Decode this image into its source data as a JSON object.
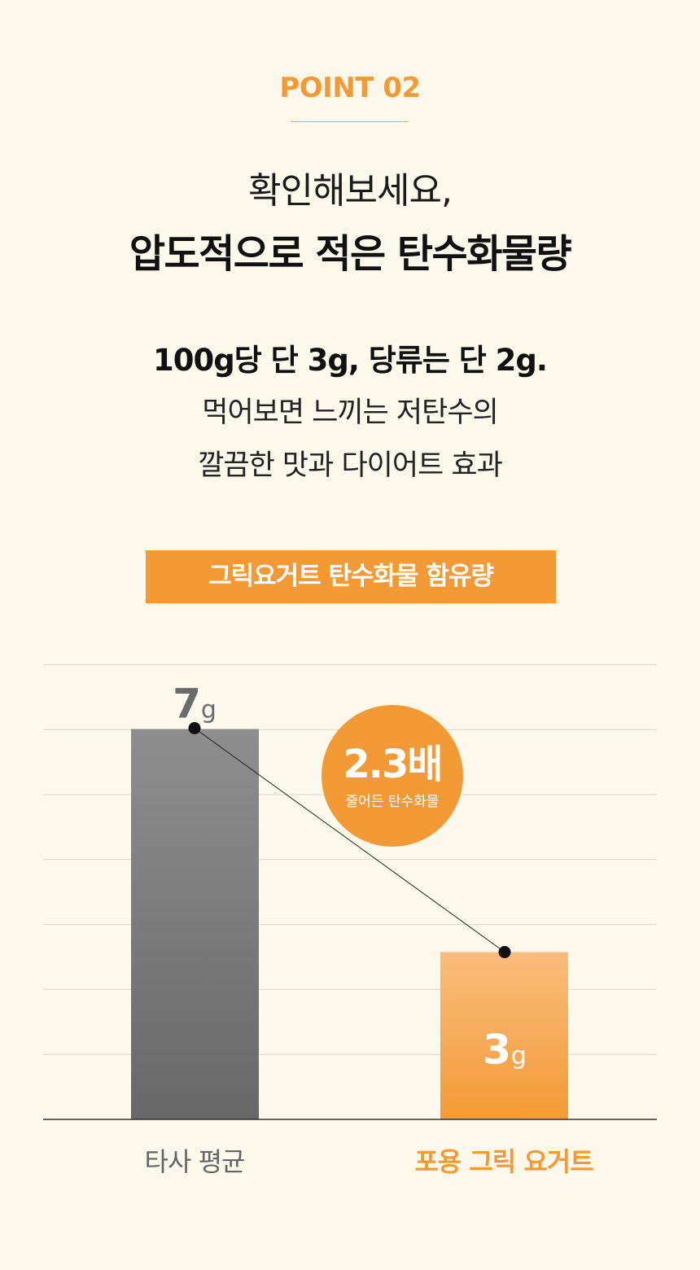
{
  "header": {
    "point_label": "POINT 02",
    "headline_light": "확인해보세요,",
    "headline_bold": "압도적으로 적은 탄수화물량"
  },
  "subtext": {
    "bold_line": "100g당 단 3g, 당류는 단 2g.",
    "line2": "먹어보면 느끼는 저탄수의",
    "line3": "깔끔한 맛과 다이어트 효과"
  },
  "chart_title": "그릭요거트 탄수화물 함유량",
  "callout": {
    "value": "2.3배",
    "caption": "줄어든 탄수화물"
  },
  "colors": {
    "accent": "#f39a36",
    "background": "#fdf8ec",
    "competitor_bar": "#7a7a7a",
    "product_bar": "#f5a24a"
  },
  "chart_data": {
    "type": "bar",
    "categories": [
      "타사 평균",
      "포용 그릭 요거트"
    ],
    "values": [
      7,
      3
    ],
    "value_labels": [
      {
        "number": "7",
        "unit": "g"
      },
      {
        "number": "3",
        "unit": "g"
      }
    ],
    "ylim": [
      0,
      10
    ],
    "grid": true,
    "legend": "none",
    "connector_line": true
  }
}
